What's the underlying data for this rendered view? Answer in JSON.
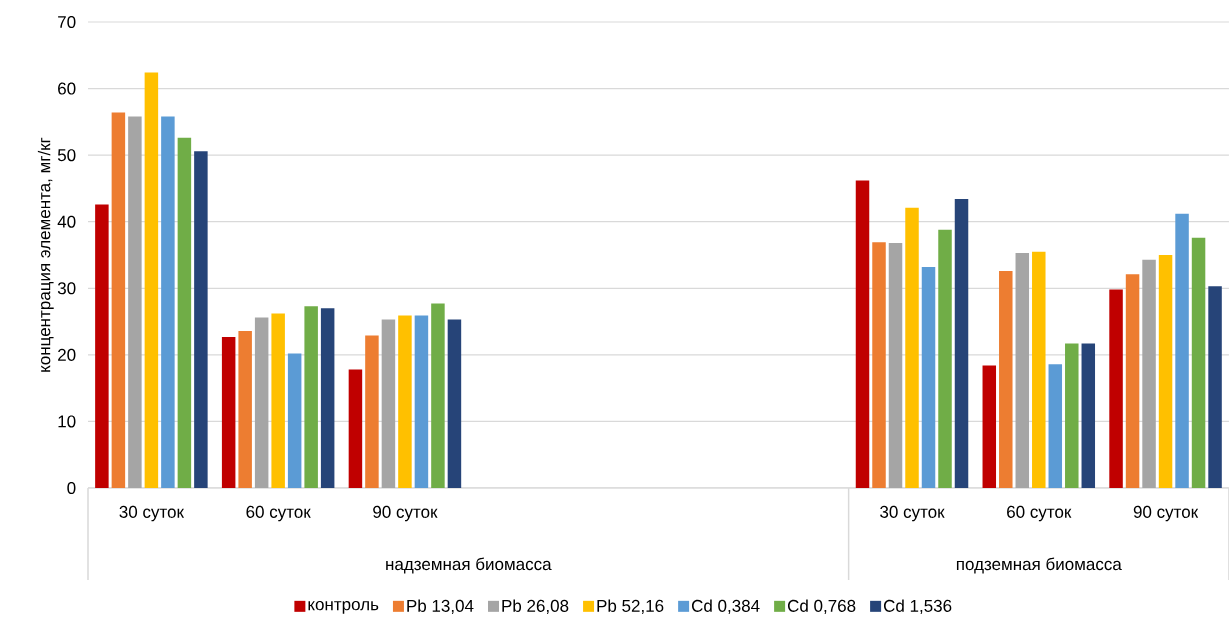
{
  "chart_data": {
    "type": "bar",
    "ylabel": "концентрация элемента, мг/кг",
    "categories": [
      "30 суток",
      "60 суток",
      "90 суток",
      null,
      null,
      null,
      "30 суток",
      "60 суток",
      "90 суток"
    ],
    "annotations": [
      "надземная биомасса",
      "подземная биомасса"
    ],
    "series": [
      {
        "name": "контроль",
        "color": "#c00000",
        "values": [
          42.6,
          22.7,
          17.8,
          null,
          null,
          null,
          46.2,
          18.4,
          29.8
        ]
      },
      {
        "name": "Pb 13,04",
        "color": "#ed7d31",
        "values": [
          56.4,
          23.6,
          22.9,
          null,
          null,
          null,
          36.9,
          32.6,
          32.1
        ]
      },
      {
        "name": "Pb 26,08",
        "color": "#a5a5a5",
        "values": [
          55.8,
          25.6,
          25.3,
          null,
          null,
          null,
          36.8,
          35.3,
          34.3
        ]
      },
      {
        "name": "Pb 52,16",
        "color": "#ffc000",
        "values": [
          62.4,
          26.2,
          25.9,
          null,
          null,
          null,
          42.1,
          35.5,
          35.0
        ]
      },
      {
        "name": "Cd 0,384",
        "color": "#5b9bd5",
        "values": [
          55.8,
          20.2,
          25.9,
          null,
          null,
          null,
          33.2,
          18.6,
          41.2
        ]
      },
      {
        "name": "Cd 0,768",
        "color": "#70ad47",
        "values": [
          52.6,
          27.3,
          27.7,
          null,
          null,
          null,
          38.8,
          21.7,
          37.6
        ]
      },
      {
        "name": "Cd 1,536",
        "color": "#264478",
        "values": [
          50.6,
          27.0,
          25.3,
          null,
          null,
          null,
          43.4,
          21.7,
          30.3
        ]
      }
    ],
    "ylim": [
      0,
      70
    ],
    "yticks": [
      0,
      10,
      20,
      30,
      40,
      50,
      60,
      70
    ],
    "grid": "y",
    "legend": "bottom"
  }
}
